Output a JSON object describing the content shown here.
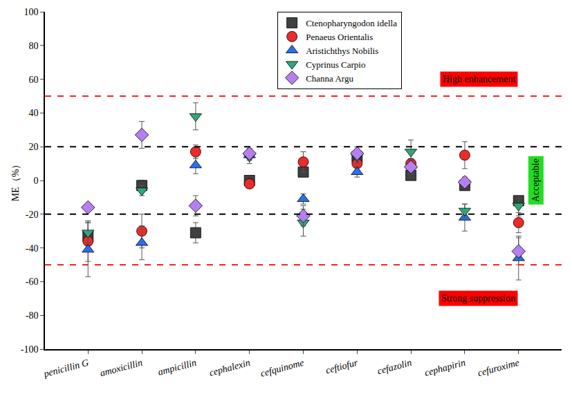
{
  "chart_data": {
    "type": "scatter",
    "y_label": "ME（%）",
    "categories": [
      "penicillin G",
      "amoxicillin",
      "ampicillin",
      "cephalexin",
      "cefquinome",
      "ceftiofur",
      "cefazolin",
      "cephapirin",
      "cefuroxime"
    ],
    "ylim": [
      -100,
      100
    ],
    "yticks": [
      -100,
      -80,
      -60,
      -40,
      -20,
      0,
      20,
      40,
      60,
      80,
      100
    ],
    "grid": false,
    "legend": "top",
    "series": [
      {
        "name": "Ctenopharyngodon idella",
        "color": "#404040",
        "marker": "square",
        "values": [
          -33,
          -3,
          -31,
          0,
          5,
          14,
          3,
          -3,
          -12
        ],
        "errors": [
          9,
          3,
          6,
          2,
          2,
          3,
          2,
          2,
          3
        ]
      },
      {
        "name": "Penaeus Orientalis",
        "color": "#ee2a2a",
        "marker": "circle",
        "values": [
          -36,
          -30,
          17,
          -2,
          11,
          10,
          10,
          15,
          -25
        ],
        "errors": [
          12,
          10,
          4,
          2,
          6,
          4,
          3,
          8,
          6
        ]
      },
      {
        "name": "Aristichthys Nobilis",
        "color": "#2a6ff0",
        "marker": "triangle-up",
        "values": [
          -41,
          -37,
          9,
          15,
          -11,
          5,
          9,
          -22,
          -46
        ],
        "errors": [
          16,
          10,
          5,
          3,
          3,
          3,
          3,
          8,
          13
        ]
      },
      {
        "name": "Cyprinus Carpio",
        "color": "#2fa878",
        "marker": "triangle-down",
        "values": [
          -31,
          -6,
          38,
          14,
          -25,
          14,
          17,
          -18,
          -15
        ],
        "errors": [
          6,
          3,
          8,
          4,
          8,
          4,
          7,
          4,
          6
        ]
      },
      {
        "name": "Channa Argu",
        "color": "#b67ff0",
        "marker": "diamond",
        "values": [
          -16,
          27,
          -15,
          16,
          -21,
          16,
          8,
          -1,
          -42
        ],
        "errors": [
          2,
          8,
          6,
          3,
          6,
          4,
          4,
          3,
          8
        ]
      }
    ],
    "hlines": [
      {
        "y": 50,
        "color": "#ff2020"
      },
      {
        "y": -50,
        "color": "#ff2020"
      },
      {
        "y": 20,
        "color": "#000000"
      },
      {
        "y": -20,
        "color": "#000000"
      }
    ],
    "annotations": [
      {
        "text": "High enhancement",
        "y": 60,
        "bgcolor": "#ff0000"
      },
      {
        "text": "Acceptable",
        "y": 0,
        "bgcolor": "#22dd22"
      },
      {
        "text": "Strong suppression",
        "y": -70,
        "bgcolor": "#ff0000"
      }
    ]
  }
}
